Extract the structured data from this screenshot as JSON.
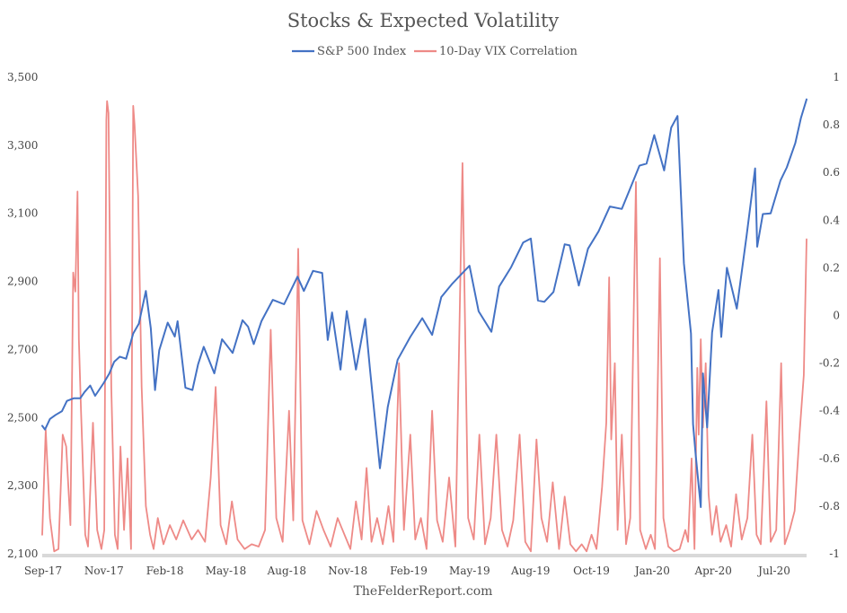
{
  "chart_data": {
    "type": "line",
    "title": "Stocks & Expected Volatility",
    "source": "TheFelderReport.com",
    "grid": false,
    "legend_position": "top-center",
    "x_labels": [
      "Sep-17",
      "Nov-17",
      "Feb-18",
      "May-18",
      "Aug-18",
      "Nov-18",
      "Feb-19",
      "May-19",
      "Aug-19",
      "Oct-19",
      "Jan-20",
      "Apr-20",
      "Jul-20"
    ],
    "x_range": [
      "2017-09-01",
      "2020-08-20"
    ],
    "y_left": {
      "ticks": [
        "2,100",
        "2,300",
        "2,500",
        "2,700",
        "2,900",
        "3,100",
        "3,300",
        "3,500"
      ],
      "range": [
        2100,
        3500
      ]
    },
    "y_right": {
      "ticks": [
        "-1",
        "-0.8",
        "-0.6",
        "-0.4",
        "-0.2",
        "0",
        "0.2",
        "0.4",
        "0.6",
        "0.8",
        "1"
      ],
      "range": [
        -1,
        1
      ]
    },
    "series": [
      {
        "name": "S&P 500 Index",
        "axis": "left",
        "color": "#4472c4",
        "points": [
          [
            "2017-09-01",
            2476
          ],
          [
            "2017-09-05",
            2465
          ],
          [
            "2017-09-12",
            2496
          ],
          [
            "2017-09-20",
            2508
          ],
          [
            "2017-09-29",
            2519
          ],
          [
            "2017-10-06",
            2549
          ],
          [
            "2017-10-16",
            2557
          ],
          [
            "2017-10-25",
            2557
          ],
          [
            "2017-10-31",
            2575
          ],
          [
            "2017-11-08",
            2594
          ],
          [
            "2017-11-15",
            2564
          ],
          [
            "2017-11-27",
            2601
          ],
          [
            "2017-12-05",
            2629
          ],
          [
            "2017-12-12",
            2664
          ],
          [
            "2017-12-20",
            2679
          ],
          [
            "2017-12-29",
            2673
          ],
          [
            "2018-01-08",
            2747
          ],
          [
            "2018-01-16",
            2776
          ],
          [
            "2018-01-26",
            2872
          ],
          [
            "2018-02-02",
            2762
          ],
          [
            "2018-02-08",
            2581
          ],
          [
            "2018-02-14",
            2698
          ],
          [
            "2018-02-26",
            2779
          ],
          [
            "2018-03-08",
            2738
          ],
          [
            "2018-03-12",
            2783
          ],
          [
            "2018-03-23",
            2588
          ],
          [
            "2018-04-02",
            2581
          ],
          [
            "2018-04-10",
            2656
          ],
          [
            "2018-04-18",
            2708
          ],
          [
            "2018-05-03",
            2630
          ],
          [
            "2018-05-14",
            2730
          ],
          [
            "2018-05-29",
            2690
          ],
          [
            "2018-06-12",
            2786
          ],
          [
            "2018-06-20",
            2767
          ],
          [
            "2018-06-28",
            2716
          ],
          [
            "2018-07-09",
            2784
          ],
          [
            "2018-07-25",
            2846
          ],
          [
            "2018-08-10",
            2833
          ],
          [
            "2018-08-29",
            2914
          ],
          [
            "2018-09-07",
            2872
          ],
          [
            "2018-09-20",
            2931
          ],
          [
            "2018-10-03",
            2925
          ],
          [
            "2018-10-11",
            2728
          ],
          [
            "2018-10-17",
            2809
          ],
          [
            "2018-10-29",
            2641
          ],
          [
            "2018-11-07",
            2813
          ],
          [
            "2018-11-20",
            2641
          ],
          [
            "2018-12-03",
            2790
          ],
          [
            "2018-12-10",
            2637
          ],
          [
            "2018-12-24",
            2351
          ],
          [
            "2019-01-04",
            2531
          ],
          [
            "2019-01-18",
            2670
          ],
          [
            "2019-02-05",
            2737
          ],
          [
            "2019-02-22",
            2792
          ],
          [
            "2019-03-08",
            2743
          ],
          [
            "2019-03-21",
            2854
          ],
          [
            "2019-04-05",
            2892
          ],
          [
            "2019-04-30",
            2946
          ],
          [
            "2019-05-13",
            2812
          ],
          [
            "2019-05-31",
            2752
          ],
          [
            "2019-06-11",
            2885
          ],
          [
            "2019-06-28",
            2942
          ],
          [
            "2019-07-15",
            3014
          ],
          [
            "2019-07-26",
            3026
          ],
          [
            "2019-08-05",
            2844
          ],
          [
            "2019-08-14",
            2840
          ],
          [
            "2019-08-27",
            2869
          ],
          [
            "2019-09-12",
            3009
          ],
          [
            "2019-09-19",
            3006
          ],
          [
            "2019-10-02",
            2888
          ],
          [
            "2019-10-15",
            2996
          ],
          [
            "2019-10-30",
            3047
          ],
          [
            "2019-11-15",
            3120
          ],
          [
            "2019-12-02",
            3113
          ],
          [
            "2019-12-13",
            3169
          ],
          [
            "2019-12-27",
            3240
          ],
          [
            "2020-01-06",
            3246
          ],
          [
            "2020-01-17",
            3330
          ],
          [
            "2020-01-31",
            3226
          ],
          [
            "2020-02-10",
            3352
          ],
          [
            "2020-02-19",
            3386
          ],
          [
            "2020-02-28",
            2954
          ],
          [
            "2020-03-09",
            2747
          ],
          [
            "2020-03-12",
            2481
          ],
          [
            "2020-03-16",
            2386
          ],
          [
            "2020-03-23",
            2237
          ],
          [
            "2020-03-26",
            2630
          ],
          [
            "2020-04-01",
            2471
          ],
          [
            "2020-04-08",
            2750
          ],
          [
            "2020-04-17",
            2875
          ],
          [
            "2020-04-21",
            2737
          ],
          [
            "2020-04-29",
            2940
          ],
          [
            "2020-05-13",
            2820
          ],
          [
            "2020-05-27",
            3036
          ],
          [
            "2020-06-08",
            3232
          ],
          [
            "2020-06-11",
            3002
          ],
          [
            "2020-06-19",
            3098
          ],
          [
            "2020-06-30",
            3100
          ],
          [
            "2020-07-14",
            3197
          ],
          [
            "2020-07-23",
            3235
          ],
          [
            "2020-08-04",
            3306
          ],
          [
            "2020-08-12",
            3380
          ],
          [
            "2020-08-20",
            3435
          ]
        ]
      },
      {
        "name": "10-Day VIX Correlation",
        "axis": "right",
        "color": "#ee8a87",
        "points": [
          [
            "2017-09-01",
            -0.92
          ],
          [
            "2017-09-06",
            -0.48
          ],
          [
            "2017-09-12",
            -0.85
          ],
          [
            "2017-09-18",
            -0.99
          ],
          [
            "2017-09-24",
            -0.98
          ],
          [
            "2017-09-30",
            -0.5
          ],
          [
            "2017-10-05",
            -0.55
          ],
          [
            "2017-10-11",
            -0.88
          ],
          [
            "2017-10-15",
            0.18
          ],
          [
            "2017-10-18",
            0.1
          ],
          [
            "2017-10-21",
            0.52
          ],
          [
            "2017-10-23",
            -0.1
          ],
          [
            "2017-10-26",
            -0.4
          ],
          [
            "2017-11-01",
            -0.92
          ],
          [
            "2017-11-05",
            -0.97
          ],
          [
            "2017-11-12",
            -0.45
          ],
          [
            "2017-11-18",
            -0.9
          ],
          [
            "2017-11-24",
            -0.98
          ],
          [
            "2017-11-28",
            -0.9
          ],
          [
            "2017-12-01",
            0.82
          ],
          [
            "2017-12-02",
            0.9
          ],
          [
            "2017-12-04",
            0.85
          ],
          [
            "2017-12-08",
            -0.3
          ],
          [
            "2017-12-13",
            -0.92
          ],
          [
            "2017-12-17",
            -0.98
          ],
          [
            "2017-12-21",
            -0.55
          ],
          [
            "2017-12-26",
            -0.9
          ],
          [
            "2017-12-31",
            -0.6
          ],
          [
            "2018-01-05",
            -0.98
          ],
          [
            "2018-01-08",
            0.88
          ],
          [
            "2018-01-10",
            0.8
          ],
          [
            "2018-01-15",
            0.5
          ],
          [
            "2018-01-20",
            -0.3
          ],
          [
            "2018-01-26",
            -0.8
          ],
          [
            "2018-02-01",
            -0.92
          ],
          [
            "2018-02-06",
            -0.98
          ],
          [
            "2018-02-12",
            -0.85
          ],
          [
            "2018-02-20",
            -0.96
          ],
          [
            "2018-03-01",
            -0.88
          ],
          [
            "2018-03-10",
            -0.94
          ],
          [
            "2018-03-20",
            -0.86
          ],
          [
            "2018-04-01",
            -0.94
          ],
          [
            "2018-04-10",
            -0.9
          ],
          [
            "2018-04-20",
            -0.95
          ],
          [
            "2018-04-28",
            -0.68
          ],
          [
            "2018-05-05",
            -0.3
          ],
          [
            "2018-05-12",
            -0.88
          ],
          [
            "2018-05-20",
            -0.96
          ],
          [
            "2018-05-28",
            -0.78
          ],
          [
            "2018-06-05",
            -0.94
          ],
          [
            "2018-06-15",
            -0.98
          ],
          [
            "2018-06-25",
            -0.96
          ],
          [
            "2018-07-05",
            -0.97
          ],
          [
            "2018-07-14",
            -0.9
          ],
          [
            "2018-07-22",
            -0.06
          ],
          [
            "2018-07-30",
            -0.85
          ],
          [
            "2018-08-08",
            -0.95
          ],
          [
            "2018-08-17",
            -0.4
          ],
          [
            "2018-08-23",
            -0.86
          ],
          [
            "2018-08-30",
            0.28
          ],
          [
            "2018-09-05",
            -0.86
          ],
          [
            "2018-09-15",
            -0.96
          ],
          [
            "2018-09-25",
            -0.82
          ],
          [
            "2018-10-05",
            -0.9
          ],
          [
            "2018-10-15",
            -0.97
          ],
          [
            "2018-10-25",
            -0.85
          ],
          [
            "2018-11-05",
            -0.93
          ],
          [
            "2018-11-12",
            -0.98
          ],
          [
            "2018-11-20",
            -0.78
          ],
          [
            "2018-11-28",
            -0.94
          ],
          [
            "2018-12-05",
            -0.64
          ],
          [
            "2018-12-12",
            -0.95
          ],
          [
            "2018-12-20",
            -0.85
          ],
          [
            "2018-12-28",
            -0.96
          ],
          [
            "2019-01-05",
            -0.8
          ],
          [
            "2019-01-12",
            -0.95
          ],
          [
            "2019-01-20",
            -0.2
          ],
          [
            "2019-01-27",
            -0.9
          ],
          [
            "2019-02-05",
            -0.5
          ],
          [
            "2019-02-12",
            -0.94
          ],
          [
            "2019-02-20",
            -0.85
          ],
          [
            "2019-02-28",
            -0.98
          ],
          [
            "2019-03-08",
            -0.4
          ],
          [
            "2019-03-15",
            -0.86
          ],
          [
            "2019-03-23",
            -0.95
          ],
          [
            "2019-04-01",
            -0.68
          ],
          [
            "2019-04-10",
            -0.97
          ],
          [
            "2019-04-20",
            0.64
          ],
          [
            "2019-04-28",
            -0.85
          ],
          [
            "2019-05-06",
            -0.94
          ],
          [
            "2019-05-14",
            -0.5
          ],
          [
            "2019-05-22",
            -0.96
          ],
          [
            "2019-05-30",
            -0.85
          ],
          [
            "2019-06-07",
            -0.5
          ],
          [
            "2019-06-15",
            -0.9
          ],
          [
            "2019-06-23",
            -0.97
          ],
          [
            "2019-07-01",
            -0.86
          ],
          [
            "2019-07-10",
            -0.5
          ],
          [
            "2019-07-18",
            -0.95
          ],
          [
            "2019-07-26",
            -0.99
          ],
          [
            "2019-08-03",
            -0.52
          ],
          [
            "2019-08-10",
            -0.85
          ],
          [
            "2019-08-18",
            -0.95
          ],
          [
            "2019-08-26",
            -0.7
          ],
          [
            "2019-09-04",
            -0.98
          ],
          [
            "2019-09-12",
            -0.76
          ],
          [
            "2019-09-20",
            -0.96
          ],
          [
            "2019-09-28",
            -0.99
          ],
          [
            "2019-10-06",
            -0.96
          ],
          [
            "2019-10-13",
            -0.99
          ],
          [
            "2019-10-20",
            -0.92
          ],
          [
            "2019-10-27",
            -0.98
          ],
          [
            "2019-11-04",
            -0.72
          ],
          [
            "2019-11-10",
            -0.45
          ],
          [
            "2019-11-14",
            0.16
          ],
          [
            "2019-11-17",
            -0.52
          ],
          [
            "2019-11-22",
            -0.2
          ],
          [
            "2019-11-26",
            -0.9
          ],
          [
            "2019-12-02",
            -0.5
          ],
          [
            "2019-12-08",
            -0.96
          ],
          [
            "2019-12-14",
            -0.85
          ],
          [
            "2019-12-22",
            0.56
          ],
          [
            "2019-12-28",
            -0.9
          ],
          [
            "2020-01-05",
            -0.98
          ],
          [
            "2020-01-12",
            -0.92
          ],
          [
            "2020-01-18",
            -0.98
          ],
          [
            "2020-01-25",
            0.24
          ],
          [
            "2020-01-30",
            -0.85
          ],
          [
            "2020-02-06",
            -0.97
          ],
          [
            "2020-02-14",
            -0.99
          ],
          [
            "2020-02-22",
            -0.98
          ],
          [
            "2020-03-01",
            -0.9
          ],
          [
            "2020-03-05",
            -0.95
          ],
          [
            "2020-03-10",
            -0.6
          ],
          [
            "2020-03-14",
            -0.98
          ],
          [
            "2020-03-18",
            -0.22
          ],
          [
            "2020-03-20",
            -0.5
          ],
          [
            "2020-03-23",
            -0.1
          ],
          [
            "2020-03-26",
            -0.47
          ],
          [
            "2020-03-30",
            -0.2
          ],
          [
            "2020-04-03",
            -0.75
          ],
          [
            "2020-04-08",
            -0.92
          ],
          [
            "2020-04-14",
            -0.8
          ],
          [
            "2020-04-20",
            -0.95
          ],
          [
            "2020-04-28",
            -0.88
          ],
          [
            "2020-05-05",
            -0.97
          ],
          [
            "2020-05-12",
            -0.75
          ],
          [
            "2020-05-20",
            -0.94
          ],
          [
            "2020-05-28",
            -0.85
          ],
          [
            "2020-06-04",
            -0.5
          ],
          [
            "2020-06-10",
            -0.92
          ],
          [
            "2020-06-16",
            -0.96
          ],
          [
            "2020-06-24",
            -0.36
          ],
          [
            "2020-06-30",
            -0.95
          ],
          [
            "2020-07-08",
            -0.9
          ],
          [
            "2020-07-15",
            -0.2
          ],
          [
            "2020-07-20",
            -0.96
          ],
          [
            "2020-07-27",
            -0.9
          ],
          [
            "2020-08-03",
            -0.82
          ],
          [
            "2020-08-10",
            -0.5
          ],
          [
            "2020-08-16",
            -0.25
          ],
          [
            "2020-08-20",
            0.32
          ]
        ]
      }
    ]
  }
}
